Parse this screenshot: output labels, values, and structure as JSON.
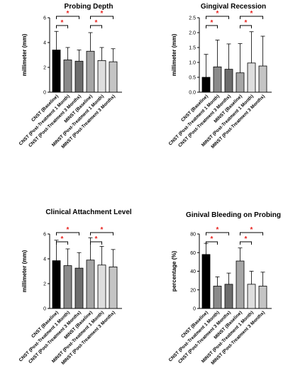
{
  "colors": [
    "#000000",
    "#8a8a8a",
    "#6d6d6d",
    "#a6a6a6",
    "#dedede",
    "#c4c4c4"
  ],
  "star_color": "#e8231f",
  "chart_data": [
    {
      "type": "bar",
      "title": "Probing Depth",
      "ylabel": "millimeter (mm)",
      "ylim": [
        0,
        6
      ],
      "yticks": [
        0,
        2,
        4,
        6
      ],
      "categories": [
        "CNST (Baseline)",
        "CNST (Post-Treatment 1 Month)",
        "CNST (Post-Treatment 3 Months)",
        "MINST (Baseline)",
        "MINST (Post-Treatment 1 Month)",
        "MINST (Post-Treatment 3 Months)"
      ],
      "values": [
        3.4,
        2.6,
        2.5,
        3.3,
        2.55,
        2.45
      ],
      "errors": [
        1.5,
        1.0,
        0.9,
        1.5,
        1.05,
        1.05
      ],
      "significance": [
        {
          "from": 0,
          "to": 1,
          "label": "*"
        },
        {
          "from": 0,
          "to": 2,
          "label": "*"
        },
        {
          "from": 3,
          "to": 4,
          "label": "*"
        },
        {
          "from": 3,
          "to": 5,
          "label": "*"
        }
      ]
    },
    {
      "type": "bar",
      "title": "Gingival Recession",
      "ylabel": "millimeter (mm)",
      "ylim": [
        0,
        2.5
      ],
      "yticks": [
        0.0,
        0.5,
        1.0,
        1.5,
        2.0,
        2.5
      ],
      "categories": [
        "CNST (Baseline)",
        "CNST (Post-Treatment 1 Month)",
        "CNST (Post-Treatment 3 Months)",
        "MINST (Baseline)",
        "MINST (Post-Treatment 1 Month)",
        "MINST (Post-Treatment 3 Months)"
      ],
      "values": [
        0.5,
        0.85,
        0.77,
        0.65,
        0.98,
        0.88
      ],
      "errors": [
        0.77,
        0.9,
        0.85,
        0.98,
        1.05,
        1.0
      ],
      "significance": [
        {
          "from": 0,
          "to": 1,
          "label": "*"
        },
        {
          "from": 0,
          "to": 2,
          "label": "*"
        },
        {
          "from": 3,
          "to": 4,
          "label": "*"
        },
        {
          "from": 3,
          "to": 5,
          "label": "*"
        }
      ]
    },
    {
      "type": "bar",
      "title": "Clinical Attachment Level",
      "ylabel": "millimeter (mm)",
      "ylim": [
        0,
        6
      ],
      "yticks": [
        0,
        2,
        4,
        6
      ],
      "categories": [
        "CNST (Baseline)",
        "CNST (Post-Treatment 1 Month)",
        "CNST (Post-Treatment 3 Months)",
        "MINST (Baseline)",
        "MINST (Post-Treatment 1 Month)",
        "MINST (Post-Treatment 3 Months)"
      ],
      "values": [
        3.85,
        3.45,
        3.25,
        3.9,
        3.5,
        3.35
      ],
      "errors": [
        1.65,
        1.35,
        1.25,
        1.8,
        1.5,
        1.4
      ],
      "significance": [
        {
          "from": 0,
          "to": 1,
          "label": "*"
        },
        {
          "from": 0,
          "to": 2,
          "label": "*"
        },
        {
          "from": 3,
          "to": 4,
          "label": "*"
        },
        {
          "from": 3,
          "to": 5,
          "label": "*"
        }
      ]
    },
    {
      "type": "bar",
      "title": "Ginival Bleeding on Probing",
      "ylabel": "percentage (%)",
      "ylim": [
        0,
        80
      ],
      "yticks": [
        0,
        20,
        40,
        60,
        80
      ],
      "categories": [
        "CNST (Baseline)",
        "CNST (Post-Treatment 1 Month)",
        "CNST (Post-Treatment 3 Months)",
        "MINST (Baseline)",
        "MINST (Post-Treatment 1 Month)",
        "MINST (Post-Treatment 3 Months)"
      ],
      "values": [
        58,
        24,
        26,
        51,
        26,
        24
      ],
      "errors": [
        12,
        10,
        12,
        14,
        14,
        15
      ],
      "significance": [
        {
          "from": 0,
          "to": 1,
          "label": "*"
        },
        {
          "from": 0,
          "to": 2,
          "label": "*"
        },
        {
          "from": 3,
          "to": 4,
          "label": "*"
        },
        {
          "from": 3,
          "to": 5,
          "label": "*"
        }
      ]
    }
  ]
}
